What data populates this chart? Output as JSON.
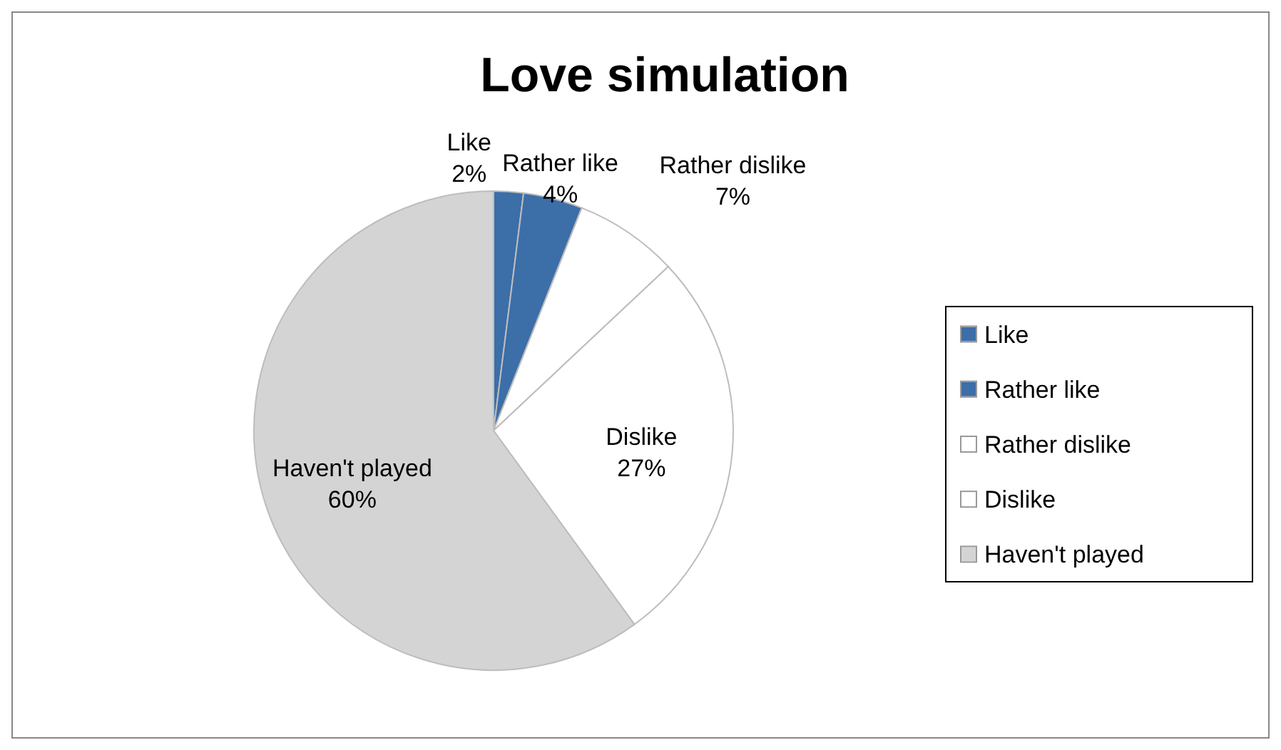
{
  "chart_data": {
    "type": "pie",
    "title": "Love simulation",
    "categories": [
      "Like",
      "Rather like",
      "Rather dislike",
      "Dislike",
      "Haven't played"
    ],
    "values": [
      2,
      4,
      7,
      27,
      60
    ],
    "colors": [
      "#3c6ea8",
      "#3c6ea8",
      "#ffffff",
      "#ffffff",
      "#d4d4d4"
    ],
    "value_labels": [
      "2%",
      "4%",
      "7%",
      "27%",
      "60%"
    ],
    "legend": "right"
  }
}
